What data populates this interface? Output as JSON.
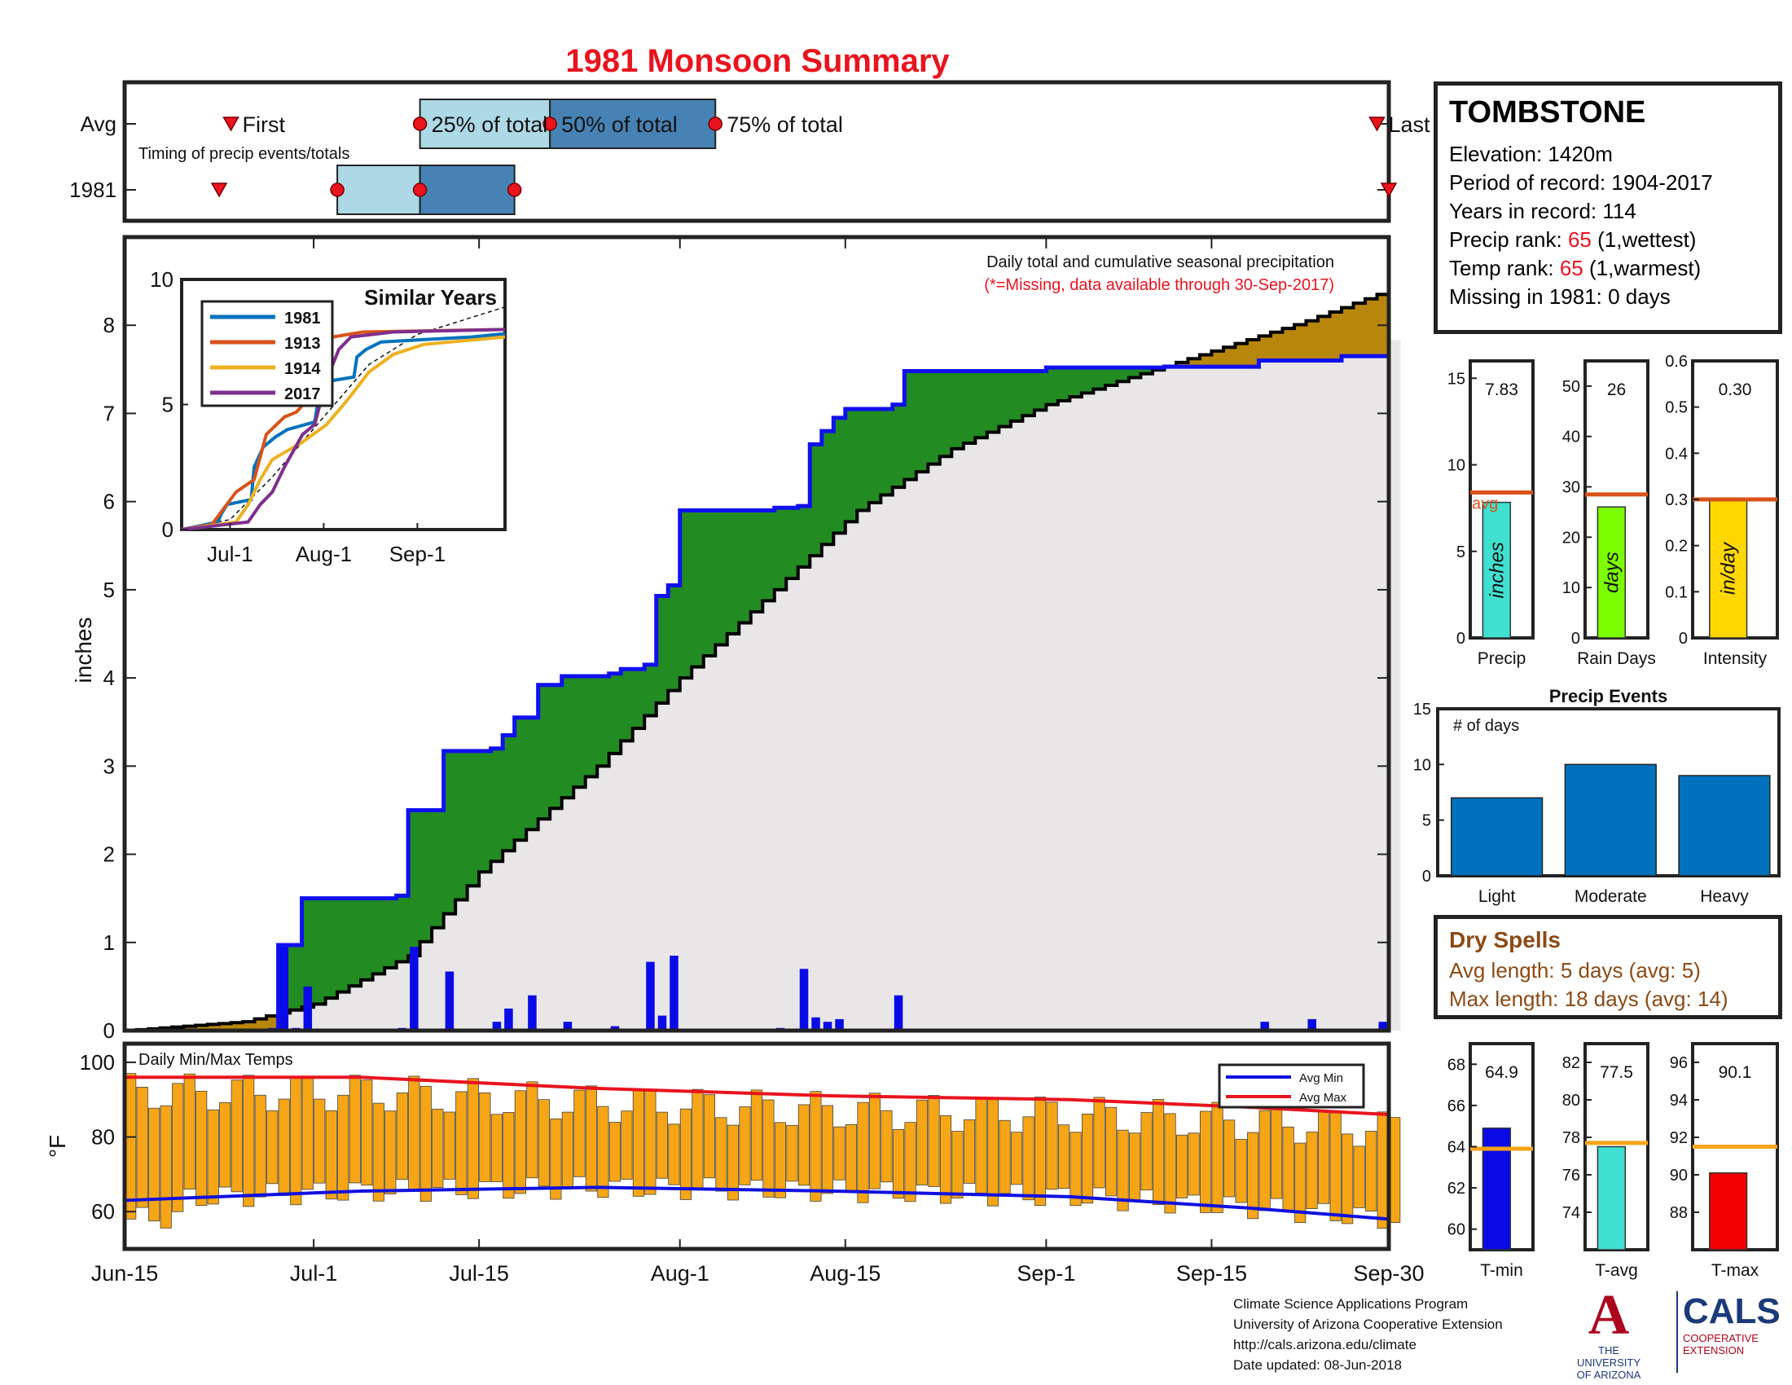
{
  "title": "1981 Monsoon Summary",
  "timing": {
    "avg_label": "Avg",
    "year_label": "1981",
    "caption": "Timing of precip events/totals",
    "first_label": "First",
    "last_label": "Last",
    "q25_label": "25% of total",
    "q50_label": "50% of total",
    "q75_label": "75% of total",
    "avg_days": {
      "first": 9,
      "q25": 25,
      "q50": 36,
      "q75": 50,
      "last": 106
    },
    "year_days": {
      "first": 8,
      "q25": 18,
      "q50": 25,
      "q75": 33,
      "last": 107
    }
  },
  "station": {
    "name": "TOMBSTONE",
    "elevation_label": "Elevation: 1420m",
    "period_label": "Period of record: 1904-2017",
    "years_label": "Years in record: 114",
    "precip_rank_prefix": "Precip rank: ",
    "precip_rank": "65",
    "precip_rank_suffix": " (1,wettest)",
    "temp_rank_prefix": "Temp rank: ",
    "temp_rank": "65",
    "temp_rank_suffix": " (1,warmest)",
    "missing_label": "Missing in 1981: 0 days"
  },
  "dry_spells": {
    "title": "Dry Spells",
    "avg_label": "Avg length: 5 days (avg: 5)",
    "max_label": "Max length: 18 days (avg: 14)"
  },
  "credits": {
    "line1": "Climate Science Applications Program",
    "line2": "University of Arizona Cooperative Extension",
    "line3": "http://cals.arizona.edu/climate",
    "line4": " Date updated: 08-Jun-2018"
  },
  "logos": {
    "ua_letter": "A",
    "ua_line1": "THE UNIVERSITY",
    "ua_line2": "OF ARIZONA",
    "cals": "CALS",
    "cals_line1": "COOPERATIVE",
    "cals_line2": "EXTENSION"
  },
  "colors": {
    "year_cum": "#1010f0",
    "avg_cum": "#000000",
    "above": "#228b22",
    "below": "#b8860b",
    "bg_fill": "#e8e6e6",
    "daily_bar": "#0a0ae6",
    "temp_bar": "#f5a516",
    "avg_min": "#1010e0",
    "avg_max": "#e8141e",
    "q_light": "#add8e6",
    "q_dark": "#4682b4"
  },
  "chart_data": [
    {
      "id": "cumulative",
      "type": "area",
      "note": "Daily total and cumulative seasonal precipitation",
      "note2": "(*=Missing, data available through 30-Sep-2017)",
      "ylabel": "inches",
      "ylim": [
        0,
        9
      ],
      "yticks": [
        0,
        1,
        2,
        3,
        4,
        5,
        6,
        7,
        8
      ],
      "x_labels": [
        "Jun-15",
        "Jul-1",
        "Jul-15",
        "Aug-1",
        "Aug-15",
        "Sep-1",
        "Sep-15",
        "Sep-30"
      ],
      "x_days": [
        0,
        16,
        30,
        47,
        61,
        78,
        92,
        107
      ],
      "n_days": 108,
      "series_year_cum": [
        [
          0,
          0
        ],
        [
          12,
          0
        ],
        [
          13,
          0.97
        ],
        [
          14,
          0.97
        ],
        [
          15,
          1.5
        ],
        [
          23,
          1.53
        ],
        [
          24,
          2.5
        ],
        [
          27,
          3.17
        ],
        [
          31,
          3.2
        ],
        [
          32,
          3.35
        ],
        [
          33,
          3.55
        ],
        [
          35,
          3.92
        ],
        [
          37,
          4.02
        ],
        [
          41,
          4.05
        ],
        [
          42,
          4.1
        ],
        [
          44,
          4.15
        ],
        [
          45,
          4.93
        ],
        [
          46,
          5.05
        ],
        [
          47,
          5.9
        ],
        [
          55,
          5.93
        ],
        [
          57,
          5.95
        ],
        [
          58,
          6.65
        ],
        [
          59,
          6.8
        ],
        [
          60,
          6.95
        ],
        [
          61,
          7.05
        ],
        [
          65,
          7.1
        ],
        [
          66,
          7.48
        ],
        [
          78,
          7.52
        ],
        [
          88,
          7.53
        ],
        [
          96,
          7.6
        ],
        [
          103,
          7.65
        ],
        [
          107,
          7.83
        ]
      ],
      "avg_cum_points": [
        [
          0,
          0
        ],
        [
          10,
          0.1
        ],
        [
          16,
          0.3
        ],
        [
          24,
          0.85
        ],
        [
          30,
          1.8
        ],
        [
          40,
          3.0
        ],
        [
          47,
          4.0
        ],
        [
          55,
          5.0
        ],
        [
          62,
          5.9
        ],
        [
          70,
          6.6
        ],
        [
          78,
          7.1
        ],
        [
          86,
          7.45
        ],
        [
          93,
          7.75
        ],
        [
          100,
          8.05
        ],
        [
          107,
          8.4
        ]
      ],
      "series_daily": [
        [
          12,
          0.03
        ],
        [
          13,
          0.95
        ],
        [
          14,
          0.03
        ],
        [
          15,
          0.5
        ],
        [
          23,
          0.03
        ],
        [
          24,
          0.95
        ],
        [
          27,
          0.67
        ],
        [
          31,
          0.1
        ],
        [
          32,
          0.25
        ],
        [
          34,
          0.4
        ],
        [
          37,
          0.1
        ],
        [
          41,
          0.05
        ],
        [
          44,
          0.78
        ],
        [
          45,
          0.17
        ],
        [
          46,
          0.85
        ],
        [
          55,
          0.03
        ],
        [
          57,
          0.7
        ],
        [
          58,
          0.15
        ],
        [
          59,
          0.1
        ],
        [
          60,
          0.13
        ],
        [
          65,
          0.4
        ],
        [
          96,
          0.1
        ],
        [
          100,
          0.13
        ],
        [
          106,
          0.1
        ]
      ]
    },
    {
      "id": "similar",
      "type": "line",
      "title": "Similar Years",
      "ylim": [
        0,
        10
      ],
      "yticks": [
        0,
        5,
        10
      ],
      "x_labels": [
        "Jul-1",
        "Aug-1",
        "Sep-1"
      ],
      "x_days": [
        16,
        47,
        78
      ],
      "series": [
        {
          "name": "1981",
          "color": "#0072bd",
          "values": [
            [
              0,
              0
            ],
            [
              12,
              0.3
            ],
            [
              13,
              0.6
            ],
            [
              15,
              1
            ],
            [
              23,
              1.2
            ],
            [
              24,
              2.5
            ],
            [
              27,
              3.3
            ],
            [
              31,
              3.7
            ],
            [
              35,
              4
            ],
            [
              44,
              4.3
            ],
            [
              45,
              5
            ],
            [
              47,
              5.9
            ],
            [
              57,
              6.1
            ],
            [
              58,
              6.9
            ],
            [
              61,
              7.2
            ],
            [
              66,
              7.5
            ],
            [
              96,
              7.7
            ],
            [
              107,
              7.83
            ]
          ]
        },
        {
          "name": "1913",
          "color": "#d95319",
          "values": [
            [
              0,
              0
            ],
            [
              10,
              0.2
            ],
            [
              18,
              1.5
            ],
            [
              24,
              2
            ],
            [
              28,
              3.8
            ],
            [
              34,
              4.5
            ],
            [
              38,
              4.7
            ],
            [
              44,
              5.5
            ],
            [
              46,
              6.8
            ],
            [
              50,
              7.7
            ],
            [
              60,
              7.9
            ],
            [
              107,
              8.0
            ]
          ]
        },
        {
          "name": "1914",
          "color": "#edb120",
          "values": [
            [
              0,
              0
            ],
            [
              18,
              0.3
            ],
            [
              22,
              1
            ],
            [
              26,
              2
            ],
            [
              30,
              2.8
            ],
            [
              40,
              3.5
            ],
            [
              48,
              4.2
            ],
            [
              55,
              5.2
            ],
            [
              62,
              6.3
            ],
            [
              70,
              7
            ],
            [
              80,
              7.4
            ],
            [
              107,
              7.7
            ]
          ]
        },
        {
          "name": "2017",
          "color": "#7e2f8e",
          "values": [
            [
              0,
              0
            ],
            [
              22,
              0.3
            ],
            [
              26,
              1
            ],
            [
              30,
              1.5
            ],
            [
              34,
              2.5
            ],
            [
              40,
              3.8
            ],
            [
              44,
              4.2
            ],
            [
              48,
              6
            ],
            [
              52,
              7.2
            ],
            [
              56,
              7.7
            ],
            [
              70,
              7.9
            ],
            [
              107,
              8.0
            ]
          ]
        }
      ],
      "avg_dashed": [
        [
          0,
          0
        ],
        [
          16,
          0.4
        ],
        [
          30,
          2.1
        ],
        [
          47,
          4.5
        ],
        [
          62,
          6.6
        ],
        [
          78,
          7.8
        ],
        [
          107,
          8.9
        ]
      ]
    },
    {
      "id": "totals",
      "type": "bar",
      "panels": [
        {
          "label": "Precip",
          "value": 7.83,
          "value_label": "7.83",
          "avg": 8.4,
          "ylim": [
            0,
            16
          ],
          "yticks": [
            0,
            5,
            10,
            15
          ],
          "bar_text": "inches",
          "color": "#40e0d0",
          "avg_text": "avg"
        },
        {
          "label": "Rain Days",
          "value": 26,
          "value_label": "26",
          "avg": 28.5,
          "ylim": [
            0,
            55
          ],
          "yticks": [
            0,
            10,
            20,
            30,
            40,
            50
          ],
          "bar_text": "days",
          "color": "#7cfc00"
        },
        {
          "label": "Intensity",
          "value": 0.3,
          "value_label": "0.30",
          "avg": 0.3,
          "ylim": [
            0,
            0.6
          ],
          "yticks": [
            0,
            0.1,
            0.2,
            0.3,
            0.4,
            0.5,
            0.6
          ],
          "bar_text": "in/day",
          "color": "#ffd700"
        }
      ]
    },
    {
      "id": "events",
      "type": "bar",
      "title": "Precip Events",
      "ylabel": "# of days",
      "categories": [
        "Light",
        "Moderate",
        "Heavy"
      ],
      "values": [
        7,
        10,
        9
      ],
      "ylim": [
        0,
        15
      ],
      "yticks": [
        0,
        5,
        10,
        15
      ],
      "color": "#0072bd"
    },
    {
      "id": "temps",
      "type": "bar",
      "title": "Daily Min/Max Temps",
      "ylabel": "°F",
      "ylim": [
        50,
        105
      ],
      "yticks": [
        60,
        80,
        100
      ],
      "legend": [
        "Avg Min",
        "Avg Max"
      ],
      "avg_min": [
        [
          0,
          63
        ],
        [
          20,
          65.5
        ],
        [
          40,
          66.5
        ],
        [
          60,
          65.5
        ],
        [
          80,
          64
        ],
        [
          95,
          61
        ],
        [
          107,
          58
        ]
      ],
      "avg_max": [
        [
          0,
          96
        ],
        [
          20,
          96
        ],
        [
          40,
          93
        ],
        [
          60,
          91
        ],
        [
          80,
          90
        ],
        [
          95,
          88
        ],
        [
          107,
          86
        ]
      ]
    },
    {
      "id": "temp_summary",
      "type": "bar",
      "panels": [
        {
          "label": "T-min",
          "value": 64.9,
          "value_label": "64.9",
          "avg": 63.9,
          "ylim": [
            59,
            69
          ],
          "yticks": [
            60,
            62,
            64,
            66,
            68
          ],
          "color": "#0a0ae6"
        },
        {
          "label": "T-avg",
          "value": 77.5,
          "value_label": "77.5",
          "avg": 77.7,
          "ylim": [
            72,
            83
          ],
          "yticks": [
            74,
            76,
            78,
            80,
            82
          ],
          "color": "#40e0d0"
        },
        {
          "label": "T-max",
          "value": 90.1,
          "value_label": "90.1",
          "avg": 91.5,
          "ylim": [
            86,
            97
          ],
          "yticks": [
            88,
            90,
            92,
            94,
            96
          ],
          "color": "#f00000"
        }
      ]
    }
  ]
}
